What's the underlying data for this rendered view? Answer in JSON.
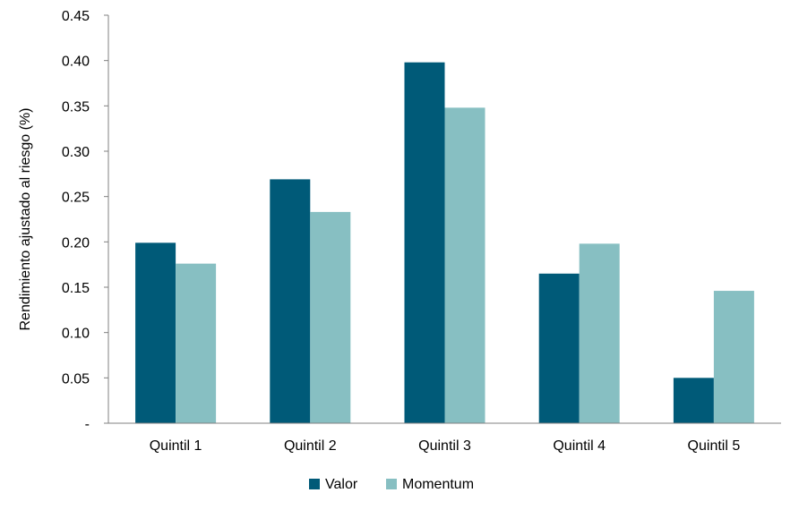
{
  "chart_data": {
    "type": "bar",
    "title": "",
    "xlabel": "",
    "ylabel": "Rendimiento ajustado al riesgo (%)",
    "ylim": [
      0,
      0.45
    ],
    "yticks": [
      0,
      0.05,
      0.1,
      0.15,
      0.2,
      0.25,
      0.3,
      0.35,
      0.4,
      0.45
    ],
    "ytick_labels": [
      "-",
      "0.05",
      "0.10",
      "0.15",
      "0.20",
      "0.25",
      "0.30",
      "0.35",
      "0.40",
      "0.45"
    ],
    "categories": [
      "Quintil 1",
      "Quintil 2",
      "Quintil 3",
      "Quintil 4",
      "Quintil 5"
    ],
    "series": [
      {
        "name": "Valor",
        "color": "#005a78",
        "values": [
          0.199,
          0.269,
          0.398,
          0.165,
          0.05
        ]
      },
      {
        "name": "Momentum",
        "color": "#87bfc2",
        "values": [
          0.176,
          0.233,
          0.348,
          0.198,
          0.146
        ]
      }
    ],
    "grid": false,
    "legend_position": "bottom"
  }
}
